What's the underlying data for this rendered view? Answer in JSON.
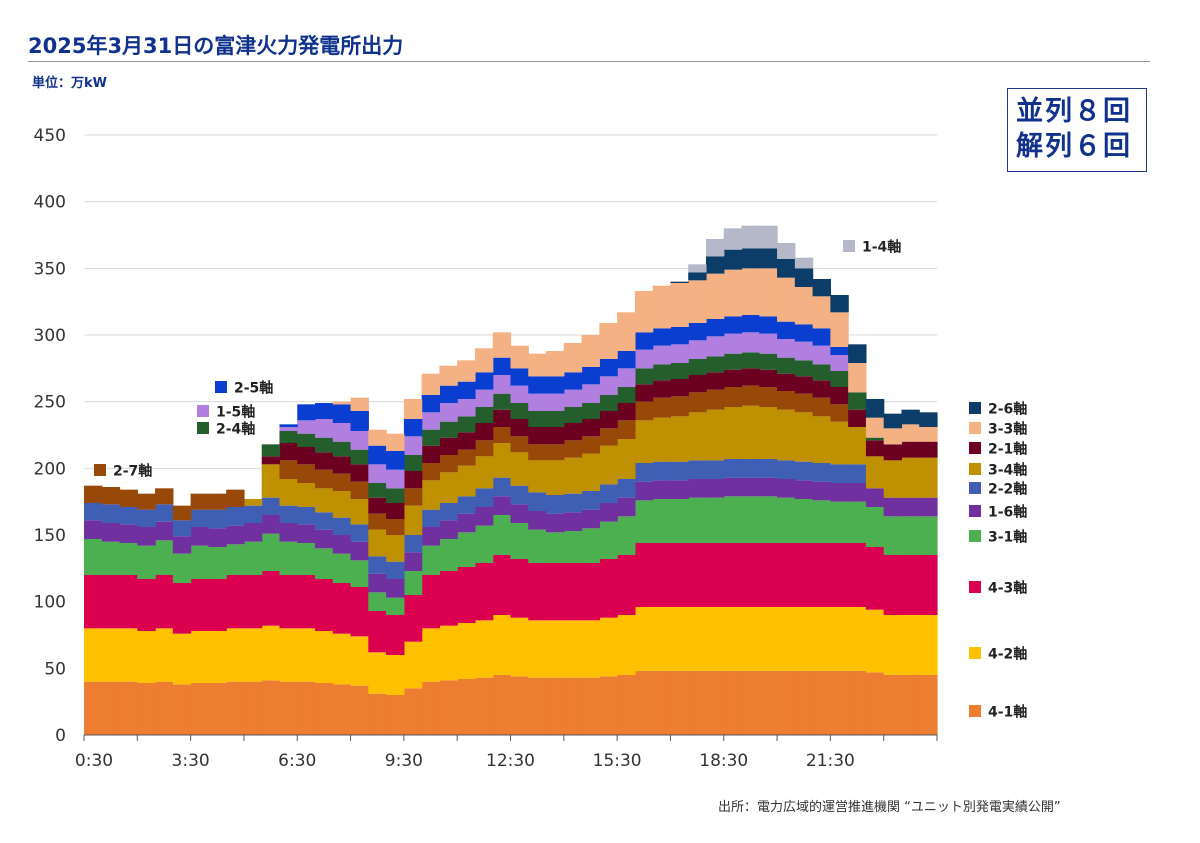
{
  "title": "2025年3月31日の富津火力発電所出力",
  "unit": "単位：万kW",
  "counts": {
    "parallel": "並列８回",
    "disconnect": "解列６回"
  },
  "source": "出所：電力広域的運営推進機関 “ユニット別発電実績公開”",
  "chart_data": {
    "type": "area",
    "subtype": "stacked-step",
    "ylabel": "万kW",
    "ylim": [
      0,
      450
    ],
    "yticks": [
      "0",
      "50",
      "100",
      "150",
      "200",
      "250",
      "300",
      "350",
      "400",
      "450"
    ],
    "xticks": [
      "0:30",
      "3:30",
      "6:30",
      "9:30",
      "12:30",
      "15:30",
      "18:30",
      "21:30"
    ],
    "x": [
      "0:30",
      "1:00",
      "1:30",
      "2:00",
      "2:30",
      "3:00",
      "3:30",
      "4:00",
      "4:30",
      "5:00",
      "5:30",
      "6:00",
      "6:30",
      "7:00",
      "7:30",
      "8:00",
      "8:30",
      "9:00",
      "9:30",
      "10:00",
      "10:30",
      "11:00",
      "11:30",
      "12:00",
      "12:30",
      "13:00",
      "13:30",
      "14:00",
      "14:30",
      "15:00",
      "15:30",
      "16:00",
      "16:30",
      "17:00",
      "17:30",
      "18:00",
      "18:30",
      "19:00",
      "19:30",
      "20:00",
      "20:30",
      "21:00",
      "21:30",
      "22:00",
      "22:30",
      "23:00",
      "23:30",
      "24:00"
    ],
    "series": [
      {
        "name": "4-1軸",
        "color": "#ed7d31",
        "values": [
          40,
          40,
          40,
          39,
          40,
          38,
          39,
          39,
          40,
          40,
          41,
          40,
          40,
          39,
          38,
          37,
          31,
          30,
          35,
          40,
          41,
          42,
          43,
          45,
          44,
          43,
          43,
          43,
          43,
          44,
          45,
          48,
          48,
          48,
          48,
          48,
          48,
          48,
          48,
          48,
          48,
          48,
          48,
          48,
          47,
          45,
          45,
          45
        ]
      },
      {
        "name": "4-2軸",
        "color": "#ffc000",
        "values": [
          40,
          40,
          40,
          39,
          40,
          38,
          39,
          39,
          40,
          40,
          41,
          40,
          40,
          39,
          38,
          37,
          31,
          30,
          35,
          40,
          41,
          42,
          43,
          45,
          44,
          43,
          43,
          43,
          43,
          44,
          45,
          48,
          48,
          48,
          48,
          48,
          48,
          48,
          48,
          48,
          48,
          48,
          48,
          48,
          47,
          45,
          45,
          45
        ]
      },
      {
        "name": "4-3軸",
        "color": "#dc0050",
        "values": [
          40,
          40,
          40,
          39,
          40,
          38,
          39,
          39,
          40,
          40,
          41,
          40,
          40,
          39,
          38,
          37,
          31,
          30,
          35,
          40,
          41,
          42,
          43,
          45,
          44,
          43,
          43,
          43,
          43,
          44,
          45,
          48,
          48,
          48,
          48,
          48,
          48,
          48,
          48,
          48,
          48,
          48,
          48,
          48,
          47,
          45,
          45,
          45
        ]
      },
      {
        "name": "3-1軸",
        "color": "#4caf50",
        "values": [
          27,
          25,
          24,
          25,
          26,
          22,
          25,
          24,
          23,
          25,
          28,
          25,
          24,
          23,
          22,
          20,
          14,
          13,
          18,
          22,
          24,
          26,
          28,
          30,
          27,
          25,
          23,
          24,
          26,
          28,
          29,
          32,
          33,
          33,
          34,
          34,
          35,
          35,
          35,
          34,
          33,
          32,
          31,
          31,
          30,
          29,
          29,
          29
        ]
      },
      {
        "name": "1-6軸",
        "color": "#7030a0",
        "values": [
          14,
          14,
          14,
          14,
          14,
          13,
          14,
          14,
          14,
          14,
          14,
          14,
          14,
          14,
          14,
          14,
          14,
          14,
          14,
          14,
          14,
          14,
          14,
          14,
          14,
          14,
          14,
          14,
          14,
          14,
          14,
          14,
          14,
          14,
          14,
          14,
          14,
          14,
          14,
          14,
          14,
          14,
          14,
          14,
          14,
          14,
          14,
          14
        ]
      },
      {
        "name": "2-2軸",
        "color": "#3f5fb5",
        "values": [
          13,
          14,
          13,
          13,
          13,
          12,
          13,
          14,
          14,
          13,
          13,
          13,
          13,
          13,
          13,
          13,
          13,
          13,
          13,
          13,
          13,
          13,
          14,
          14,
          14,
          14,
          14,
          14,
          14,
          14,
          14,
          14,
          14,
          14,
          14,
          14,
          14,
          14,
          14,
          14,
          14,
          14,
          14,
          14,
          0,
          0,
          0,
          0
        ]
      },
      {
        "name": "3-4軸",
        "color": "#bf9000",
        "values": [
          0,
          0,
          0,
          0,
          0,
          0,
          0,
          0,
          0,
          5,
          25,
          20,
          18,
          18,
          20,
          19,
          20,
          20,
          22,
          22,
          23,
          23,
          24,
          26,
          25,
          24,
          26,
          27,
          28,
          29,
          30,
          32,
          33,
          34,
          36,
          38,
          39,
          40,
          39,
          38,
          37,
          35,
          32,
          28,
          24,
          28,
          30,
          30
        ]
      },
      {
        "name": "2-7軸",
        "color": "#984807",
        "values": [
          13,
          13,
          13,
          12,
          12,
          11,
          12,
          12,
          13,
          0,
          0,
          14,
          14,
          14,
          13,
          13,
          12,
          12,
          13,
          13,
          13,
          12,
          12,
          12,
          12,
          12,
          12,
          13,
          13,
          13,
          14,
          14,
          15,
          15,
          15,
          15,
          15,
          15,
          15,
          14,
          14,
          14,
          13,
          0,
          0,
          0,
          0,
          0
        ]
      },
      {
        "name": "2-1軸",
        "color": "#6b0020",
        "values": [
          0,
          0,
          0,
          0,
          0,
          0,
          0,
          0,
          0,
          0,
          6,
          13,
          13,
          13,
          13,
          13,
          12,
          12,
          13,
          13,
          13,
          13,
          13,
          13,
          13,
          13,
          13,
          13,
          13,
          13,
          13,
          13,
          13,
          13,
          13,
          13,
          13,
          13,
          13,
          13,
          13,
          13,
          13,
          13,
          12,
          12,
          12,
          12
        ]
      },
      {
        "name": "2-4軸",
        "color": "#255e2d",
        "values": [
          0,
          0,
          0,
          0,
          0,
          0,
          0,
          0,
          0,
          0,
          9,
          9,
          10,
          11,
          11,
          11,
          11,
          11,
          12,
          12,
          12,
          12,
          12,
          12,
          12,
          12,
          12,
          12,
          12,
          12,
          12,
          12,
          12,
          12,
          12,
          12,
          12,
          12,
          12,
          12,
          12,
          12,
          12,
          13,
          2,
          0,
          0,
          0
        ]
      },
      {
        "name": "1-5軸",
        "color": "#b07fe0",
        "values": [
          0,
          0,
          0,
          0,
          0,
          0,
          0,
          0,
          0,
          0,
          0,
          3,
          10,
          14,
          14,
          14,
          14,
          14,
          14,
          13,
          14,
          13,
          13,
          14,
          13,
          13,
          13,
          13,
          14,
          14,
          14,
          14,
          14,
          14,
          14,
          15,
          15,
          15,
          15,
          14,
          14,
          14,
          12,
          0,
          0,
          0,
          0,
          0
        ]
      },
      {
        "name": "2-5軸",
        "color": "#0a3ed1",
        "values": [
          0,
          0,
          0,
          0,
          0,
          0,
          0,
          0,
          0,
          0,
          0,
          2,
          12,
          12,
          14,
          15,
          14,
          14,
          13,
          13,
          13,
          13,
          13,
          13,
          13,
          13,
          13,
          13,
          13,
          13,
          13,
          13,
          13,
          13,
          13,
          13,
          13,
          13,
          13,
          13,
          13,
          13,
          6,
          0,
          0,
          0,
          0,
          0
        ]
      },
      {
        "name": "3-3軸",
        "color": "#f4b183",
        "values": [
          0,
          0,
          0,
          0,
          0,
          0,
          0,
          0,
          0,
          0,
          0,
          0,
          0,
          0,
          2,
          10,
          12,
          13,
          15,
          16,
          15,
          16,
          18,
          19,
          17,
          17,
          19,
          22,
          24,
          27,
          29,
          31,
          32,
          33,
          32,
          34,
          35,
          35,
          36,
          33,
          28,
          24,
          26,
          22,
          15,
          12,
          13,
          11
        ]
      },
      {
        "name": "2-6軸",
        "color": "#0b3d68",
        "values": [
          0,
          0,
          0,
          0,
          0,
          0,
          0,
          0,
          0,
          0,
          0,
          0,
          0,
          0,
          0,
          0,
          0,
          0,
          0,
          0,
          0,
          0,
          0,
          0,
          0,
          0,
          0,
          0,
          0,
          0,
          0,
          0,
          0,
          1,
          6,
          13,
          15,
          15,
          15,
          14,
          14,
          13,
          13,
          14,
          14,
          11,
          11,
          11
        ]
      },
      {
        "name": "1-4軸",
        "color": "#b4b8c8",
        "values": [
          0,
          0,
          0,
          0,
          0,
          0,
          0,
          0,
          0,
          0,
          0,
          0,
          0,
          0,
          0,
          0,
          0,
          0,
          0,
          0,
          0,
          0,
          0,
          0,
          0,
          0,
          0,
          0,
          0,
          0,
          0,
          0,
          0,
          0,
          6,
          13,
          16,
          17,
          17,
          12,
          8,
          0,
          0,
          0,
          0,
          0,
          0,
          0
        ]
      }
    ]
  },
  "labels": {
    "2-7軸": "2-7軸",
    "2-5軸": "2-5軸",
    "1-5軸": "1-5軸",
    "2-4軸": "2-4軸",
    "1-4軸": "1-4軸",
    "2-6軸": "2-6軸",
    "3-3軸": "3-3軸",
    "2-1軸": "2-1軸",
    "3-4軸": "3-4軸",
    "2-2軸": "2-2軸",
    "1-6軸": "1-6軸",
    "3-1軸": "3-1軸",
    "4-3軸": "4-3軸",
    "4-2軸": "4-2軸",
    "4-1軸": "4-1軸"
  }
}
